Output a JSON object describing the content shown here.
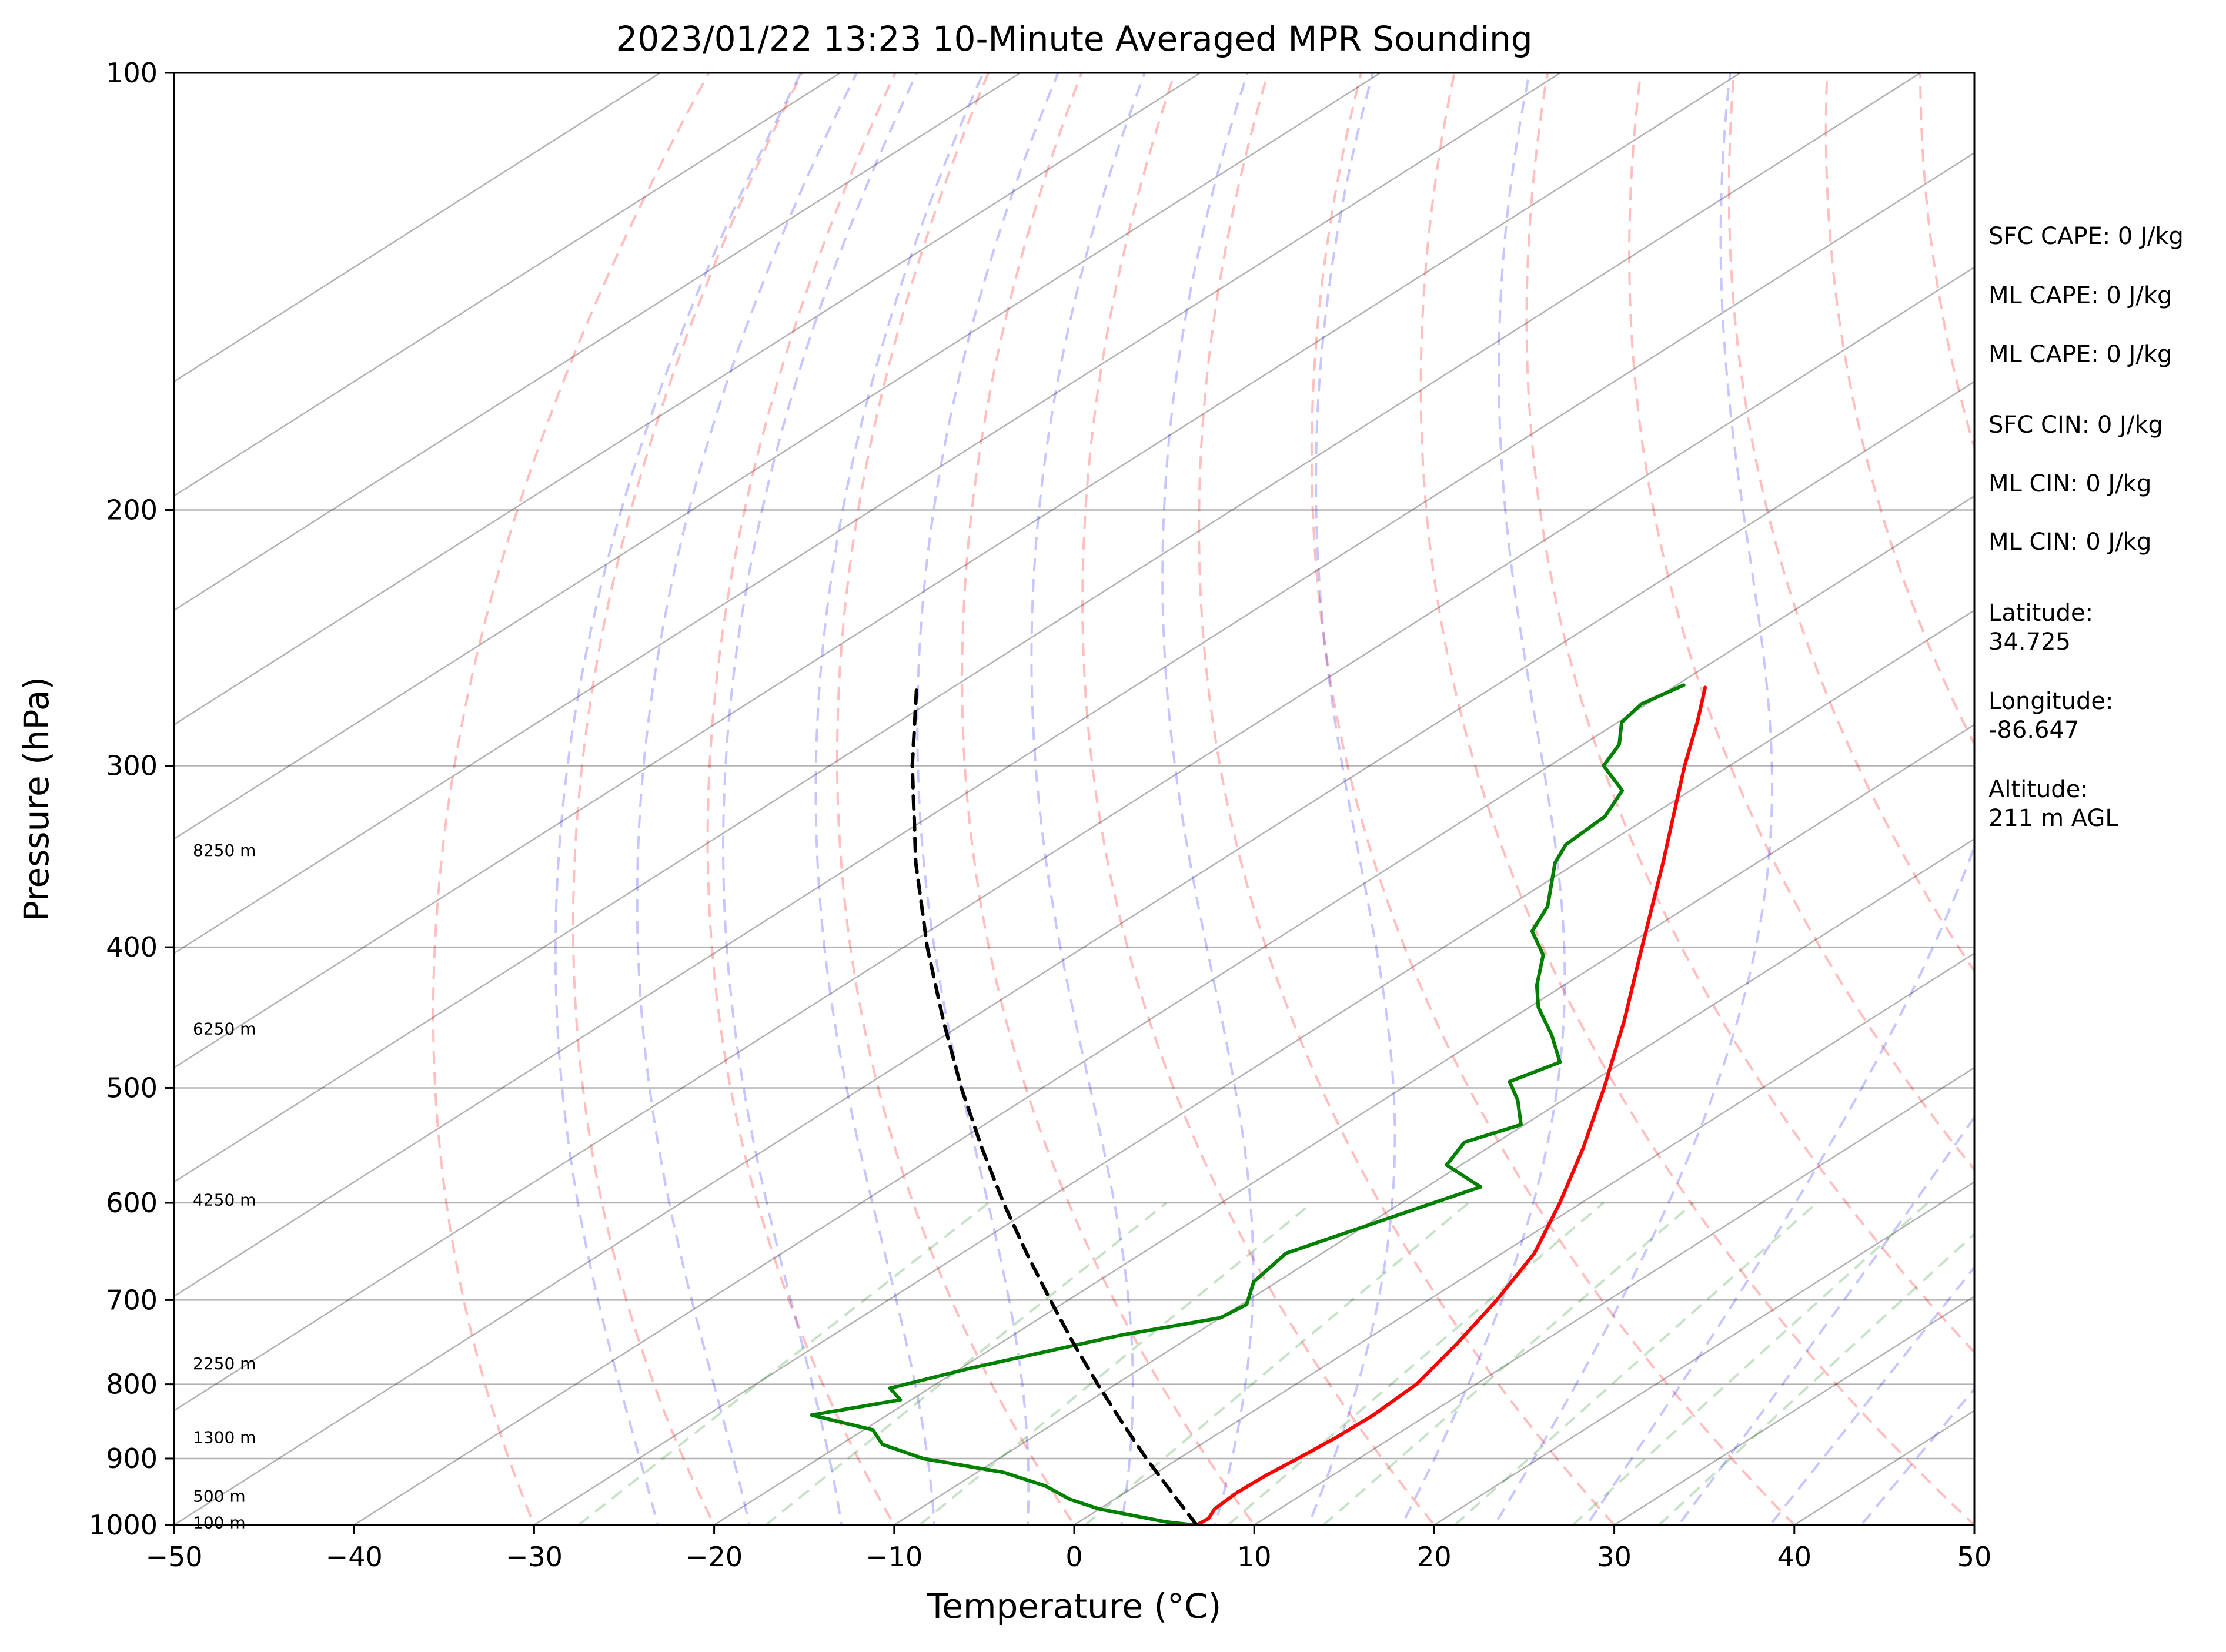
{
  "chart_data": {
    "type": "line",
    "title": "2023/01/22 13:23 10-Minute Averaged MPR Sounding",
    "xlabel": "Temperature (°C)",
    "ylabel": "Pressure (hPa)",
    "xlim": [
      -50,
      50
    ],
    "ylim": [
      1000,
      100
    ],
    "y_scale": "log",
    "skew": "skew-T",
    "grid": true,
    "x_ticks": [
      "−50",
      "−40",
      "−30",
      "−20",
      "−10",
      "0",
      "10",
      "20",
      "30",
      "40",
      "50"
    ],
    "x_tick_values": [
      -50,
      -40,
      -30,
      -20,
      -10,
      0,
      10,
      20,
      30,
      40,
      50
    ],
    "y_ticks": [
      "100",
      "200",
      "300",
      "400",
      "500",
      "600",
      "700",
      "800",
      "900",
      "1000"
    ],
    "y_tick_values": [
      100,
      200,
      300,
      400,
      500,
      600,
      700,
      800,
      900,
      1000
    ],
    "height_labels": [
      {
        "text": "8250 m",
        "p": 343
      },
      {
        "text": "6250 m",
        "p": 455
      },
      {
        "text": "4250 m",
        "p": 597
      },
      {
        "text": "2250 m",
        "p": 774
      },
      {
        "text": "1300 m",
        "p": 870
      },
      {
        "text": "500 m",
        "p": 955
      },
      {
        "text": "100 m",
        "p": 996
      }
    ],
    "series": [
      {
        "color": "#ff0000",
        "values": [
          {
            "p": 1000,
            "t": 6.8
          },
          {
            "p": 990,
            "t": 6.9
          },
          {
            "p": 975,
            "t": 6.4
          },
          {
            "p": 950,
            "t": 6.2
          },
          {
            "p": 925,
            "t": 6.3
          },
          {
            "p": 900,
            "t": 6.6
          },
          {
            "p": 870,
            "t": 6.9
          },
          {
            "p": 840,
            "t": 7.0
          },
          {
            "p": 800,
            "t": 6.7
          },
          {
            "p": 750,
            "t": 5.4
          },
          {
            "p": 700,
            "t": 3.8
          },
          {
            "p": 650,
            "t": 1.8
          },
          {
            "p": 600,
            "t": -1.2
          },
          {
            "p": 550,
            "t": -4.7
          },
          {
            "p": 500,
            "t": -8.8
          },
          {
            "p": 450,
            "t": -13.5
          },
          {
            "p": 400,
            "t": -19.0
          },
          {
            "p": 350,
            "t": -25.2
          },
          {
            "p": 300,
            "t": -32.5
          },
          {
            "p": 280,
            "t": -35.6
          },
          {
            "p": 265,
            "t": -38.2
          }
        ]
      },
      {
        "color": "#008000",
        "values": [
          {
            "p": 1000,
            "t": 6.6
          },
          {
            "p": 995,
            "t": 4.8
          },
          {
            "p": 975,
            "t": 0.0
          },
          {
            "p": 960,
            "t": -2.5
          },
          {
            "p": 940,
            "t": -5.0
          },
          {
            "p": 920,
            "t": -8.5
          },
          {
            "p": 900,
            "t": -14.2
          },
          {
            "p": 880,
            "t": -17.7
          },
          {
            "p": 860,
            "t": -19.5
          },
          {
            "p": 840,
            "t": -24.2
          },
          {
            "p": 820,
            "t": -20.6
          },
          {
            "p": 805,
            "t": -22.2
          },
          {
            "p": 780,
            "t": -19.5
          },
          {
            "p": 740,
            "t": -14.0
          },
          {
            "p": 720,
            "t": -10.0
          },
          {
            "p": 705,
            "t": -9.7
          },
          {
            "p": 680,
            "t": -11.3
          },
          {
            "p": 650,
            "t": -12.0
          },
          {
            "p": 610,
            "t": -9.0
          },
          {
            "p": 585,
            "t": -7.0
          },
          {
            "p": 565,
            "t": -10.8
          },
          {
            "p": 545,
            "t": -11.8
          },
          {
            "p": 530,
            "t": -10.2
          },
          {
            "p": 510,
            "t": -12.5
          },
          {
            "p": 495,
            "t": -14.6
          },
          {
            "p": 480,
            "t": -13.5
          },
          {
            "p": 460,
            "t": -16.3
          },
          {
            "p": 440,
            "t": -19.5
          },
          {
            "p": 425,
            "t": -21.5
          },
          {
            "p": 405,
            "t": -23.8
          },
          {
            "p": 390,
            "t": -26.5
          },
          {
            "p": 375,
            "t": -27.8
          },
          {
            "p": 350,
            "t": -31.2
          },
          {
            "p": 340,
            "t": -32.2
          },
          {
            "p": 325,
            "t": -32.5
          },
          {
            "p": 312,
            "t": -33.8
          },
          {
            "p": 300,
            "t": -37.0
          },
          {
            "p": 290,
            "t": -38.0
          },
          {
            "p": 280,
            "t": -39.8
          },
          {
            "p": 272,
            "t": -40.3
          },
          {
            "p": 264,
            "t": -39.6
          }
        ]
      },
      {
        "color": "#000000",
        "dashed": true,
        "values": [
          {
            "p": 1000,
            "t": 6.8
          },
          {
            "p": 950,
            "t": 2.6
          },
          {
            "p": 900,
            "t": -1.8
          },
          {
            "p": 850,
            "t": -6.3
          },
          {
            "p": 800,
            "t": -11.0
          },
          {
            "p": 750,
            "t": -15.9
          },
          {
            "p": 700,
            "t": -21.0
          },
          {
            "p": 650,
            "t": -26.4
          },
          {
            "p": 600,
            "t": -32.1
          },
          {
            "p": 550,
            "t": -38.1
          },
          {
            "p": 500,
            "t": -44.5
          },
          {
            "p": 450,
            "t": -51.3
          },
          {
            "p": 400,
            "t": -58.7
          },
          {
            "p": 350,
            "t": -66.7
          },
          {
            "p": 300,
            "t": -75.4
          },
          {
            "p": 265,
            "t": -82.0
          }
        ]
      }
    ],
    "reference_lines": {
      "isotherms": {
        "color": "#000000",
        "opacity": 0.3
      },
      "dry_adiabats": {
        "color": "#ff0000",
        "opacity": 0.25,
        "dashed": true
      },
      "moist_adiabats": {
        "color": "#0000ff",
        "opacity": 0.22,
        "dashed": true
      },
      "mixing_ratio_lines": {
        "color": "#008000",
        "opacity": 0.22,
        "dashed": true
      }
    }
  },
  "side_panel": {
    "sfc_cape": "SFC CAPE: 0 J/kg",
    "ml_cape_1": "ML CAPE: 0 J/kg",
    "ml_cape_2": "ML CAPE: 0 J/kg",
    "sfc_cin": "SFC CIN: 0 J/kg",
    "ml_cin_1": "ML CIN: 0 J/kg",
    "ml_cin_2": "ML CIN: 0 J/kg",
    "latitude_label": "Latitude:",
    "latitude_value": "34.725",
    "longitude_label": "Longitude:",
    "longitude_value": "-86.647",
    "altitude_label": "Altitude:",
    "altitude_value": "211 m AGL"
  }
}
